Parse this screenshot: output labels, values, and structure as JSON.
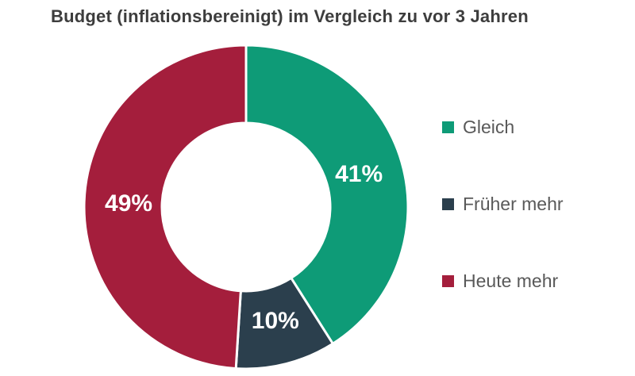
{
  "title": "Budget (inflationsbereinigt) im Vergleich zu vor 3 Jahren",
  "chart_data": {
    "type": "pie",
    "subtype": "donut",
    "title": "Budget (inflationsbereinigt) im Vergleich zu vor 3 Jahren",
    "categories": [
      "Gleich",
      "Früher mehr",
      "Heute mehr"
    ],
    "values": [
      41,
      10,
      49
    ],
    "unit": "%",
    "slice_labels": [
      "41%",
      "10%",
      "49%"
    ],
    "colors": [
      "#0E9B77",
      "#2B3F4D",
      "#A41E3C"
    ],
    "start_angle_deg": 0,
    "direction": "clockwise",
    "inner_radius_ratio": 0.52,
    "separator_color": "#ffffff",
    "slice_label_color": "#ffffff",
    "legend_position": "right",
    "grid": false
  },
  "legend": {
    "items": [
      {
        "label": "Gleich",
        "color": "#0E9B77"
      },
      {
        "label": "Früher mehr",
        "color": "#2B3F4D"
      },
      {
        "label": "Heute mehr",
        "color": "#A41E3C"
      }
    ]
  }
}
